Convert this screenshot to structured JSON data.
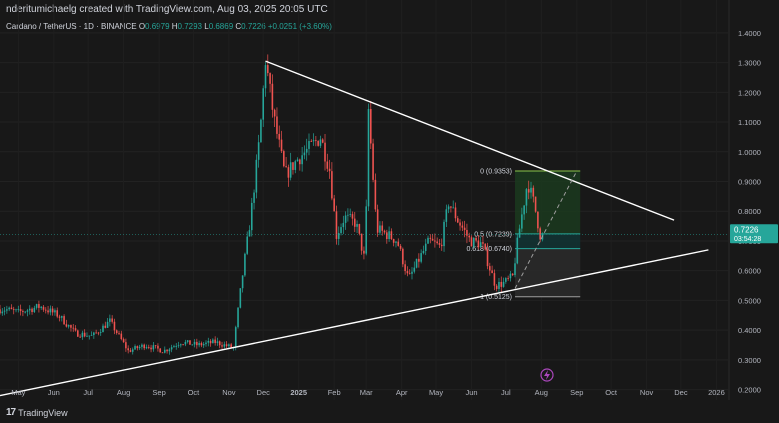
{
  "header": {
    "credit": "nderitumichaelg created with TradingView.com, Aug 03, 2025 20:05 UTC"
  },
  "legend": {
    "symbol": "Cardano / TetherUS · 1D · BINANCE",
    "o_label": "O",
    "o_value": "0.6979",
    "h_label": "H",
    "h_value": "0.7293",
    "l_label": "L",
    "l_value": "0.6869",
    "c_label": "C",
    "c_value": "0.7226",
    "change": "+0.0251 (+3.60%)"
  },
  "brand": {
    "logo": "17",
    "name": "TradingView"
  },
  "chart_data": {
    "type": "candlestick",
    "title": "Cardano / TetherUS · 1D · BINANCE",
    "xlabel": "",
    "ylabel": "",
    "x_ticks": [
      "May",
      "Jun",
      "Jul",
      "Aug",
      "Sep",
      "Oct",
      "Nov",
      "Dec",
      "2025",
      "Feb",
      "Mar",
      "Apr",
      "May",
      "Jun",
      "Jul",
      "Aug",
      "Sep",
      "Oct",
      "Nov",
      "Dec",
      "2026"
    ],
    "y_ticks": [
      "1.4000",
      "1.3000",
      "1.2000",
      "1.1000",
      "1.0000",
      "0.9000",
      "0.8000",
      "0.7000",
      "0.6000",
      "0.5000",
      "0.4000",
      "0.3000",
      "0.2000"
    ],
    "ylim": [
      0.165,
      1.45
    ],
    "price_series": [
      [
        "2024-04-20",
        0.47
      ],
      [
        "2024-05-01",
        0.46
      ],
      [
        "2024-05-20",
        0.48
      ],
      [
        "2024-06-05",
        0.45
      ],
      [
        "2024-06-20",
        0.39
      ],
      [
        "2024-07-05",
        0.38
      ],
      [
        "2024-07-20",
        0.43
      ],
      [
        "2024-08-05",
        0.33
      ],
      [
        "2024-08-20",
        0.35
      ],
      [
        "2024-09-05",
        0.33
      ],
      [
        "2024-09-20",
        0.36
      ],
      [
        "2024-10-05",
        0.35
      ],
      [
        "2024-10-20",
        0.36
      ],
      [
        "2024-11-05",
        0.34
      ],
      [
        "2024-11-12",
        0.56
      ],
      [
        "2024-11-20",
        0.78
      ],
      [
        "2024-11-28",
        1.05
      ],
      [
        "2024-12-03",
        1.31
      ],
      [
        "2024-12-10",
        1.12
      ],
      [
        "2024-12-20",
        0.92
      ],
      [
        "2025-01-01",
        0.98
      ],
      [
        "2025-01-10",
        1.01
      ],
      [
        "2025-01-20",
        1.05
      ],
      [
        "2025-01-28",
        0.94
      ],
      [
        "2025-02-03",
        0.72
      ],
      [
        "2025-02-10",
        0.78
      ],
      [
        "2025-02-20",
        0.76
      ],
      [
        "2025-02-28",
        0.63
      ],
      [
        "2025-03-03",
        1.14
      ],
      [
        "2025-03-10",
        0.74
      ],
      [
        "2025-03-20",
        0.72
      ],
      [
        "2025-03-28",
        0.7
      ],
      [
        "2025-04-07",
        0.57
      ],
      [
        "2025-04-15",
        0.63
      ],
      [
        "2025-04-25",
        0.7
      ],
      [
        "2025-05-05",
        0.68
      ],
      [
        "2025-05-12",
        0.83
      ],
      [
        "2025-05-20",
        0.77
      ],
      [
        "2025-05-31",
        0.7
      ],
      [
        "2025-06-10",
        0.69
      ],
      [
        "2025-06-22",
        0.55
      ],
      [
        "2025-06-30",
        0.56
      ],
      [
        "2025-07-07",
        0.58
      ],
      [
        "2025-07-12",
        0.72
      ],
      [
        "2025-07-20",
        0.9
      ],
      [
        "2025-07-26",
        0.82
      ],
      [
        "2025-08-01",
        0.7
      ],
      [
        "2025-08-03",
        0.7226
      ]
    ],
    "trendlines": [
      {
        "name": "upper",
        "from": [
          "2024-12-03",
          1.305
        ],
        "to": [
          "2025-11-25",
          0.77
        ]
      },
      {
        "name": "lower",
        "from": [
          "2024-04-15",
          0.18
        ],
        "to": [
          "2025-12-25",
          0.67
        ]
      },
      {
        "name": "projection",
        "from": [
          "2025-07-09",
          0.54
        ],
        "to": [
          "2025-09-01",
          0.935
        ]
      }
    ],
    "fibonacci": {
      "range_dates": [
        "2025-07-09",
        "2025-09-04"
      ],
      "levels": [
        {
          "label": "0 (0.9353)",
          "value": 0.9353
        },
        {
          "label": "0.5 (0.7239)",
          "value": 0.7239
        },
        {
          "label": "0.618 (0.6740)",
          "value": 0.674
        },
        {
          "label": "1 (0.5125)",
          "value": 0.5125
        }
      ]
    },
    "last_price": {
      "value": "0.7226",
      "countdown": "03:54:28",
      "color": "#26a69a"
    },
    "colors": {
      "up": "#26a69a",
      "down": "#ef5350",
      "line": "#ffffff",
      "fib_zone_top": "#2e7d32",
      "fib_zone_bottom": "#606060"
    }
  }
}
